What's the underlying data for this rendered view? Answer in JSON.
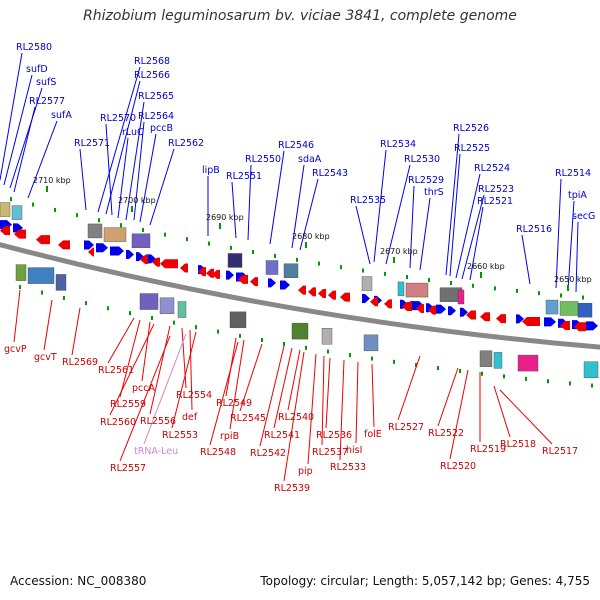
{
  "title": "Rhizobium leguminosarum bv. viciae 3841, complete genome",
  "accession": "Accession: NC_008380",
  "summary": "Topology: circular; Length: 5,057,142 bp; Genes: 4,755",
  "colors": {
    "backbone": "#888888",
    "forward_gene": "#0000ee",
    "reverse_gene": "#ee0000",
    "forward_label": "#0000cc",
    "reverse_label": "#cc0000",
    "trna_label": "#cc88cc",
    "tick_green": "#009900"
  },
  "kbp_labels": [
    "2710 kbp",
    "2700 kbp",
    "2690 kbp",
    "2680 kbp",
    "2670 kbp",
    "2660 kbp",
    "2650 kbp"
  ],
  "top_labels": [
    "RL2580",
    "sufD",
    "sufS",
    "RL2577",
    "sufA",
    "RL2571",
    "RL2568",
    "RL2566",
    "RL2570",
    "rLuC",
    "RL2565",
    "RL2564",
    "pccB",
    "RL2562",
    "lipB",
    "RL2551",
    "RL2550",
    "RL2546",
    "sdaA",
    "RL2543",
    "RL2534",
    "RL2530",
    "RL2529",
    "thrS",
    "RL2535",
    "RL2526",
    "RL2525",
    "RL2524",
    "RL2523",
    "RL2521",
    "RL2516",
    "RL2514",
    "tpiA",
    "secG"
  ],
  "bottom_labels": [
    "gcvP",
    "gcvT",
    "RL2569",
    "RL2561",
    "RL2559",
    "pccA",
    "RL2560",
    "RL2556",
    "RL2554",
    "def",
    "RL2553",
    "tRNA-Leu",
    "RL2557",
    "RL2549",
    "rpiB",
    "RL2548",
    "RL2545",
    "RL2542",
    "RL2541",
    "RL2540",
    "RL2539",
    "pip",
    "RL2537",
    "RL2536",
    "RL2533",
    "hisI",
    "folE",
    "RL2527",
    "RL2522",
    "RL2520",
    "RL2519",
    "RL2518",
    "RL2517"
  ]
}
